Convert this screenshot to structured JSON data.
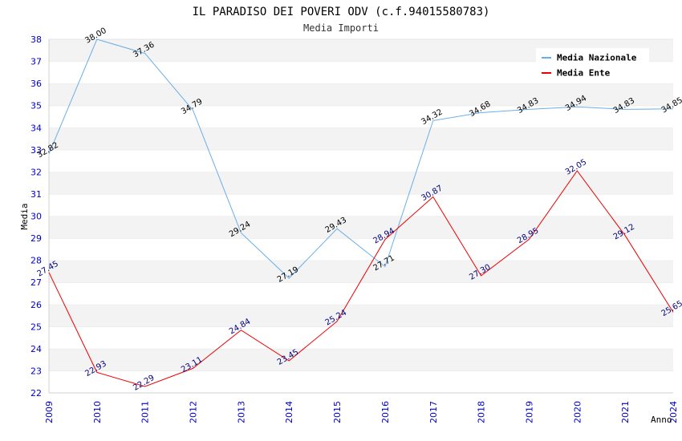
{
  "chart_data": {
    "type": "line",
    "title": "IL PARADISO DEI POVERI ODV (c.f.94015580783)",
    "subtitle": "Media Importi",
    "xlabel": "Anno",
    "ylabel": "Media",
    "ylim": [
      22,
      38
    ],
    "yticks": [
      "22",
      "23",
      "24",
      "25",
      "26",
      "27",
      "28",
      "29",
      "30",
      "31",
      "32",
      "33",
      "34",
      "35",
      "36",
      "37",
      "38"
    ],
    "x": [
      "2009",
      "2010",
      "2011",
      "2012",
      "2013",
      "2014",
      "2015",
      "2016",
      "2017",
      "2018",
      "2019",
      "2020",
      "2021",
      "2024"
    ],
    "grid": "alternating horizontal bands",
    "legend_position": "top-right",
    "series": [
      {
        "name": "Media Nazionale",
        "color": "#6aaee6",
        "label_color": "#000000",
        "values": [
          32.82,
          38.0,
          37.36,
          34.79,
          29.24,
          27.19,
          29.43,
          27.71,
          34.32,
          34.68,
          34.83,
          34.94,
          34.83,
          34.85
        ],
        "labels": [
          "32.82",
          "38.00",
          "37.36",
          "34.79",
          "29.24",
          "27.19",
          "29.43",
          "27.71",
          "34.32",
          "34.68",
          "34.83",
          "34.94",
          "34.83",
          "34.85"
        ]
      },
      {
        "name": "Media Ente",
        "color": "#ee0000",
        "label_color": "#000080",
        "values": [
          27.45,
          22.93,
          22.29,
          23.11,
          24.84,
          23.45,
          25.24,
          28.94,
          30.87,
          27.3,
          28.95,
          32.05,
          29.12,
          25.65
        ],
        "labels": [
          "27.45",
          "22.93",
          "22.29",
          "23.11",
          "24.84",
          "23.45",
          "25.24",
          "28.94",
          "30.87",
          "27.30",
          "28.95",
          "32.05",
          "29.12",
          "25.65"
        ]
      }
    ]
  }
}
